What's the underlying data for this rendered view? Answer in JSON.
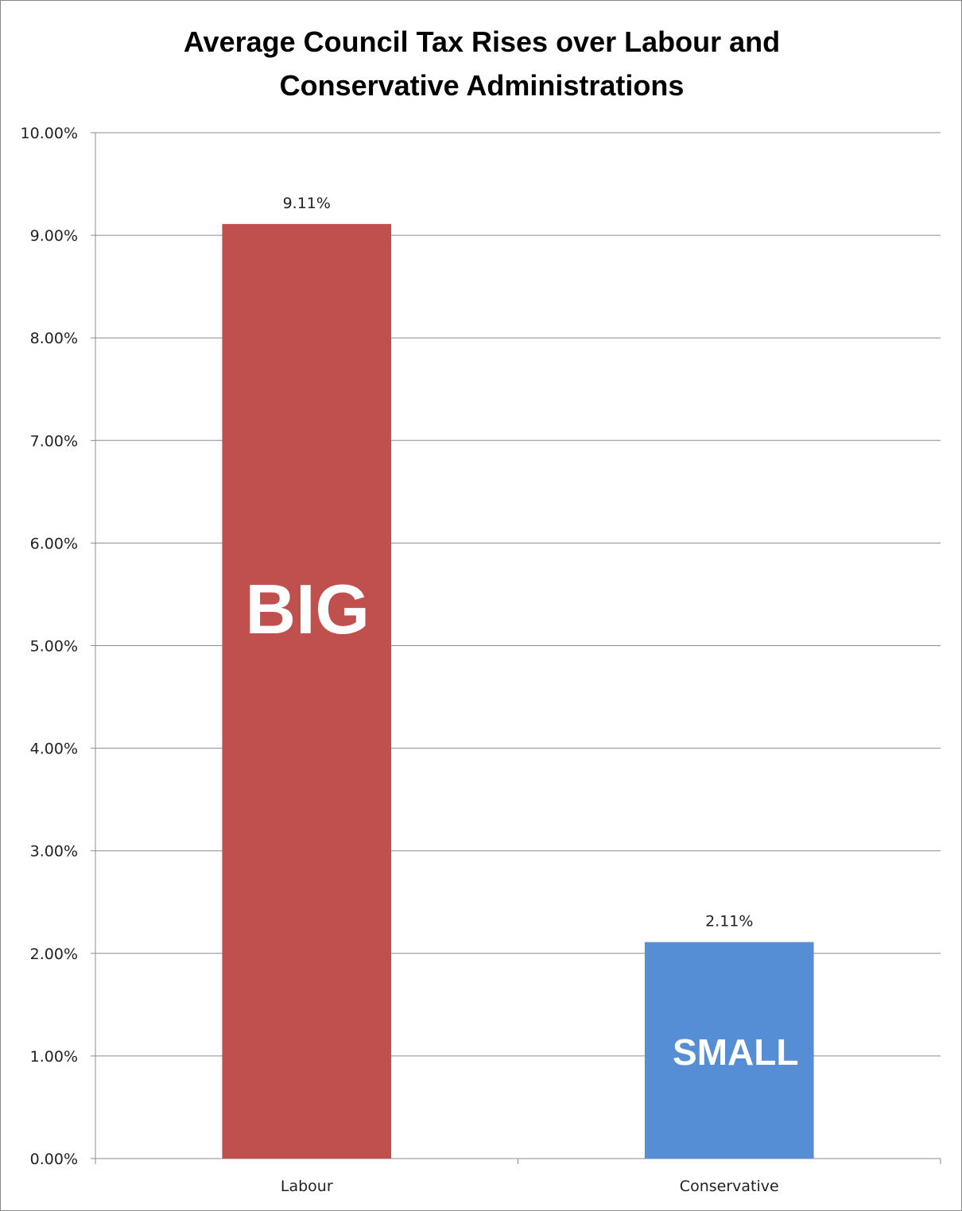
{
  "chart_data": {
    "type": "bar",
    "title_lines": [
      "Average Council Tax Rises over Labour and",
      "Conservative Administrations"
    ],
    "categories": [
      "Labour",
      "Conservative"
    ],
    "values": [
      9.11,
      2.11
    ],
    "data_labels": [
      "9.11%",
      "2.11%"
    ],
    "overlay_labels": [
      "BIG",
      "SMALL"
    ],
    "colors": [
      "#C0504D",
      "#558ED5"
    ],
    "ylim": [
      0,
      10
    ],
    "yticks": [
      0,
      1,
      2,
      3,
      4,
      5,
      6,
      7,
      8,
      9,
      10
    ],
    "ytick_labels": [
      "0.00%",
      "1.00%",
      "2.00%",
      "3.00%",
      "4.00%",
      "5.00%",
      "6.00%",
      "7.00%",
      "8.00%",
      "9.00%",
      "10.00%"
    ],
    "grid": true,
    "legend": "none"
  }
}
